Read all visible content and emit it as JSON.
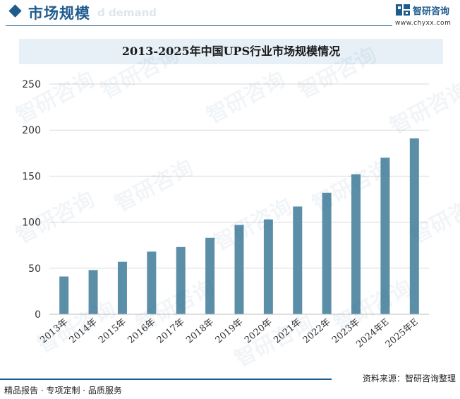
{
  "header": {
    "section_title": "市场规模",
    "section_subtitle": "d demand",
    "brand_name": "智研咨询",
    "brand_url": "www.chyxx.com"
  },
  "chart_data": {
    "type": "bar",
    "title": "2013-2025年中国UPS行业市场规模情况",
    "xlabel": "",
    "ylabel": "",
    "ylim": [
      0,
      250
    ],
    "yticks": [
      0,
      50,
      100,
      150,
      200,
      250
    ],
    "grid": true,
    "categories": [
      "2013年",
      "2014年",
      "2015年",
      "2016年",
      "2017年",
      "2018年",
      "2019年",
      "2020年",
      "2021年",
      "2022年",
      "2023年",
      "2024年E",
      "2025年E"
    ],
    "values": [
      41,
      48,
      57,
      68,
      73,
      83,
      97,
      103,
      117,
      132,
      152,
      170,
      191
    ],
    "bar_color": "#5b8fa8"
  },
  "footer": {
    "source": "资料来源：智研咨询整理",
    "slogan": "精品报告 · 专项定制 · 品质服务"
  },
  "watermark": {
    "text": "智研咨询"
  }
}
